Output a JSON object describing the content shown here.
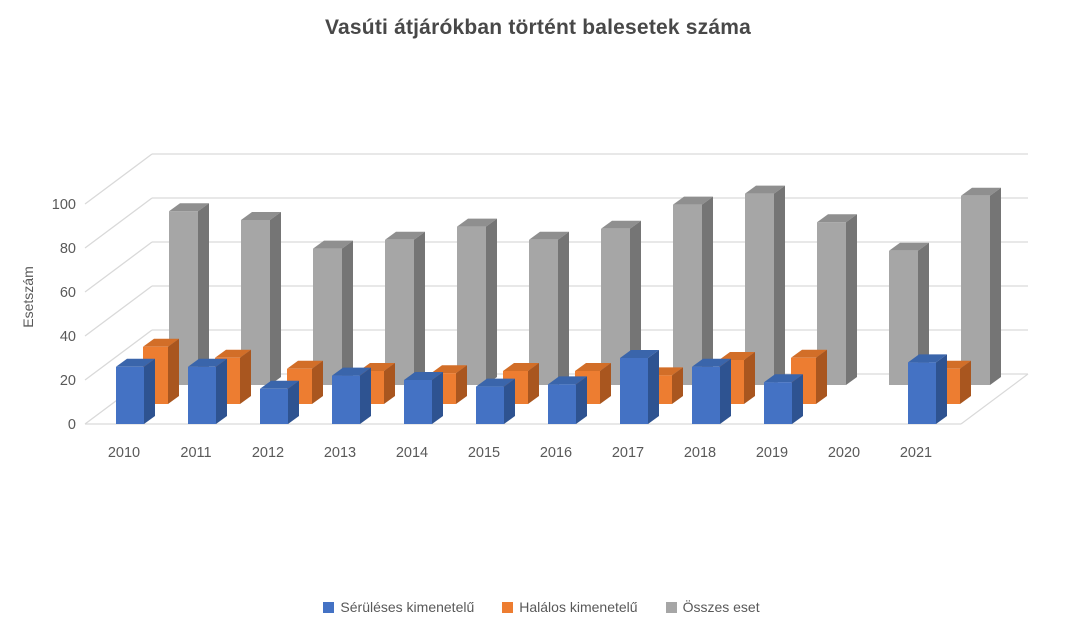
{
  "chart_data": {
    "type": "bar",
    "projection": "3d-clustered-column",
    "title": "Vasúti átjárókban történt balesetek száma",
    "ylabel": "Esetszám",
    "categories": [
      "2010",
      "2011",
      "2012",
      "2013",
      "2014",
      "2015",
      "2016",
      "2017",
      "2018",
      "2019",
      "2020",
      "2021"
    ],
    "series": [
      {
        "name": "Sérüléses kimenetelű",
        "color": "#4472C4",
        "color_top": "#3A65AB",
        "color_side": "#2E5391",
        "values": [
          26,
          26,
          16,
          22,
          20,
          17,
          18,
          30,
          26,
          19,
          null,
          28
        ]
      },
      {
        "name": "Halálos kimenetelű",
        "color": "#ED7D31",
        "color_top": "#D26E28",
        "color_side": "#A9561F",
        "values": [
          26,
          21,
          16,
          15,
          14,
          15,
          15,
          13,
          20,
          21,
          null,
          16
        ]
      },
      {
        "name": "Összes eset",
        "color": "#A6A6A6",
        "color_top": "#8F8F8F",
        "color_side": "#757575",
        "values": [
          79,
          75,
          62,
          66,
          72,
          66,
          71,
          82,
          87,
          74,
          61,
          86
        ]
      }
    ],
    "ylim": [
      0,
      100
    ],
    "ytick_step": 20,
    "yticks": [
      "0",
      "20",
      "40",
      "60",
      "80",
      "100"
    ],
    "grid": true,
    "legend_position": "bottom",
    "grid_color": "#D9D9D9",
    "text_color": "#595959",
    "background": "#FFFFFF"
  }
}
